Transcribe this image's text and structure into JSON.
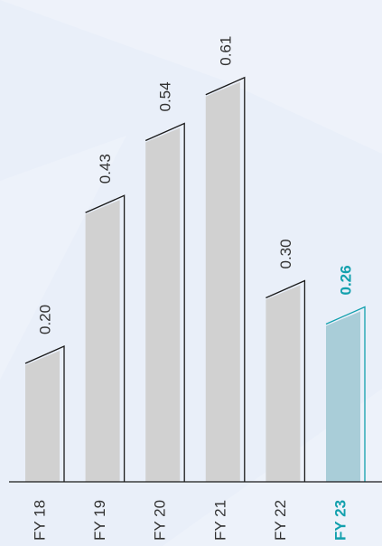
{
  "colors": {
    "background": "#e9eff9",
    "bar": "#d1d1d1",
    "bar_highlight": "#a9cdd8",
    "outline": "#1a1a1a",
    "outline_highlight": "#12a0ad",
    "label": "#333333",
    "label_highlight": "#12a0ad"
  },
  "chart_data": {
    "type": "bar",
    "title": "",
    "xlabel": "",
    "ylabel": "",
    "categories": [
      "FY 18",
      "FY 19",
      "FY 20",
      "FY 21",
      "FY 22",
      "FY 23"
    ],
    "values": [
      0.2,
      0.43,
      0.54,
      0.61,
      0.3,
      0.26
    ],
    "value_labels": [
      "0.20",
      "0.43",
      "0.54",
      "0.61",
      "0.30",
      "0.26"
    ],
    "highlight_index": 5,
    "ylim": [
      0,
      0.7
    ],
    "grid": false,
    "legend": "none",
    "label_orientation": "vertical"
  }
}
